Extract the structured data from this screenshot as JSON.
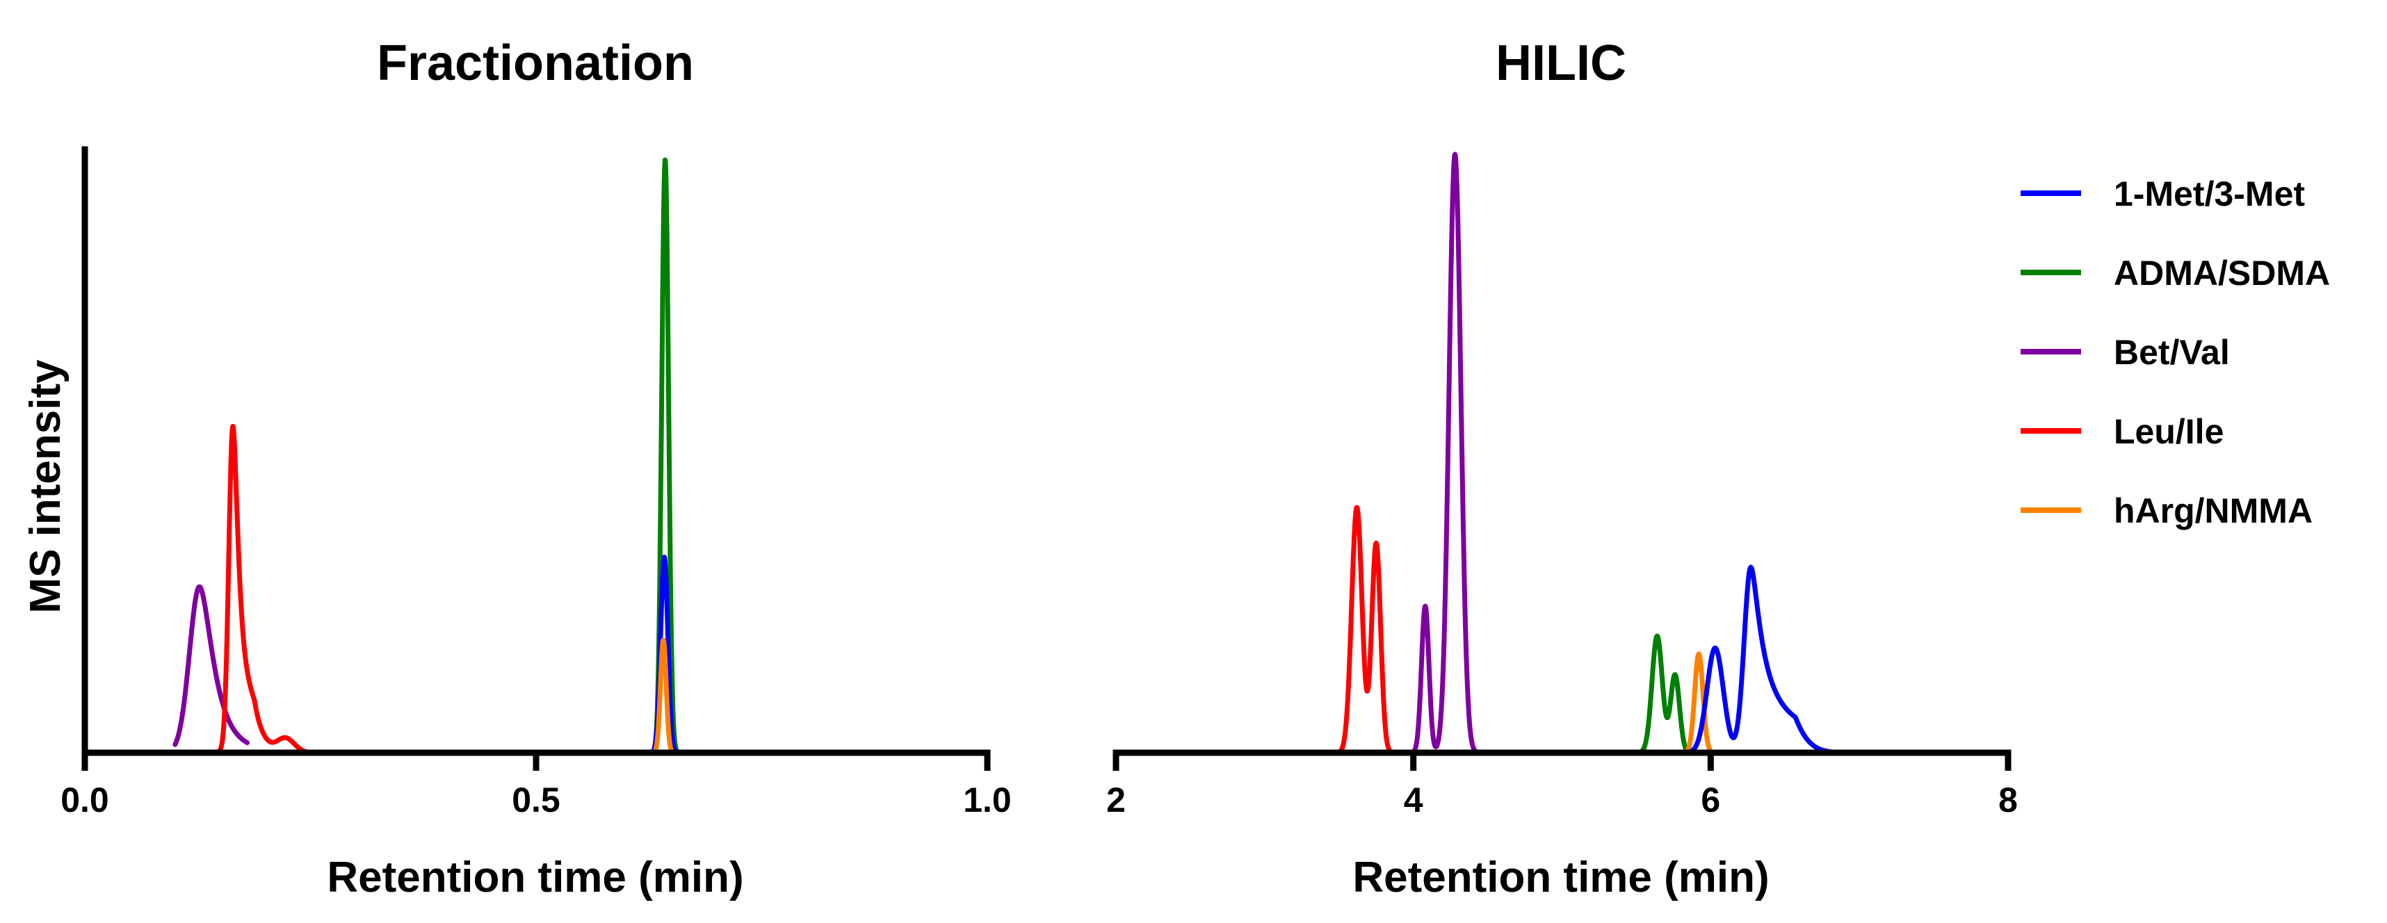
{
  "legend": {
    "placement": "right",
    "entries": [
      {
        "name": "1-Met/3-Met",
        "color": "#0000ff"
      },
      {
        "name": "ADMA/SDMA",
        "color": "#008000"
      },
      {
        "name": "Bet/Val",
        "color": "#7f00a0"
      },
      {
        "name": "Leu/Ile",
        "color": "#ff0000"
      },
      {
        "name": "hArg/NMMA",
        "color": "#ff8000"
      }
    ]
  },
  "y_axis_label": "MS intensity",
  "chart_data": [
    {
      "type": "line",
      "title": "Fractionation",
      "xlabel": "Retention time (min)",
      "ylabel": "MS intensity",
      "xlim": [
        0.0,
        1.0
      ],
      "xticks": [
        "0.0",
        "0.5",
        "1.0"
      ],
      "ylim": [
        0,
        1.0
      ],
      "grid": false,
      "y_tick_labels": "none",
      "series": [
        {
          "name": "Bet/Val",
          "color": "#7f00a0",
          "peaks": [
            {
              "center": 0.127,
              "height": 0.28,
              "width": 0.011,
              "tail": 0.012
            }
          ],
          "range": [
            0.1,
            0.18
          ]
        },
        {
          "name": "Leu/Ile",
          "color": "#ff0000",
          "peaks": [
            {
              "center": 0.164,
              "height": 0.54,
              "width": 0.0045,
              "tail": 0.006
            },
            {
              "center": 0.185,
              "height": 0.05,
              "width": 0.012,
              "tail": 0.0
            },
            {
              "center": 0.222,
              "height": 0.025,
              "width": 0.01,
              "tail": 0.0
            }
          ],
          "range": [
            0.11,
            0.25
          ]
        },
        {
          "name": "ADMA/SDMA",
          "color": "#008000",
          "peaks": [
            {
              "center": 0.643,
              "height": 1.0,
              "width": 0.0038,
              "tail": 0.0
            }
          ],
          "range": [
            0.62,
            0.68
          ]
        },
        {
          "name": "1-Met/3-Met",
          "color": "#0000ff",
          "peaks": [
            {
              "center": 0.642,
              "height": 0.33,
              "width": 0.004,
              "tail": 0.0
            }
          ],
          "range": [
            0.62,
            0.68
          ]
        },
        {
          "name": "hArg/NMMA",
          "color": "#ff8000",
          "peaks": [
            {
              "center": 0.641,
              "height": 0.19,
              "width": 0.0032,
              "tail": 0.0
            }
          ],
          "range": [
            0.62,
            0.67
          ]
        }
      ]
    },
    {
      "type": "line",
      "title": "HILIC",
      "xlabel": "Retention time (min)",
      "xlim": [
        2,
        8
      ],
      "xticks": [
        "2",
        "4",
        "6",
        "8"
      ],
      "ylim": [
        0,
        1.0
      ],
      "grid": false,
      "y_axis_visible": false,
      "series": [
        {
          "name": "Leu/Ile",
          "color": "#ff0000",
          "peaks": [
            {
              "center": 3.62,
              "height": 0.41,
              "width": 0.035,
              "tail": 0.0
            },
            {
              "center": 3.75,
              "height": 0.35,
              "width": 0.03,
              "tail": 0.0
            }
          ],
          "range": [
            3.45,
            3.9
          ]
        },
        {
          "name": "Bet/Val",
          "color": "#7f00a0",
          "peaks": [
            {
              "center": 4.08,
              "height": 0.245,
              "width": 0.025,
              "tail": 0.0
            },
            {
              "center": 4.28,
              "height": 1.0,
              "width": 0.04,
              "tail": 0.0
            }
          ],
          "range": [
            3.9,
            4.55
          ]
        },
        {
          "name": "ADMA/SDMA",
          "color": "#008000",
          "peaks": [
            {
              "center": 5.64,
              "height": 0.195,
              "width": 0.035,
              "tail": 0.0
            },
            {
              "center": 5.76,
              "height": 0.13,
              "width": 0.03,
              "tail": 0.0
            }
          ],
          "range": [
            5.42,
            5.92
          ]
        },
        {
          "name": "hArg/NMMA",
          "color": "#ff8000",
          "peaks": [
            {
              "center": 5.92,
              "height": 0.165,
              "width": 0.028,
              "tail": 0.0
            }
          ],
          "range": [
            5.72,
            6.12
          ]
        },
        {
          "name": "1-Met/3-Met",
          "color": "#0000ff",
          "peaks": [
            {
              "center": 6.03,
              "height": 0.175,
              "width": 0.055,
              "tail": 0.0
            },
            {
              "center": 6.27,
              "height": 0.31,
              "width": 0.045,
              "tail": 0.12
            }
          ],
          "range": [
            5.8,
            6.85
          ]
        }
      ]
    }
  ]
}
